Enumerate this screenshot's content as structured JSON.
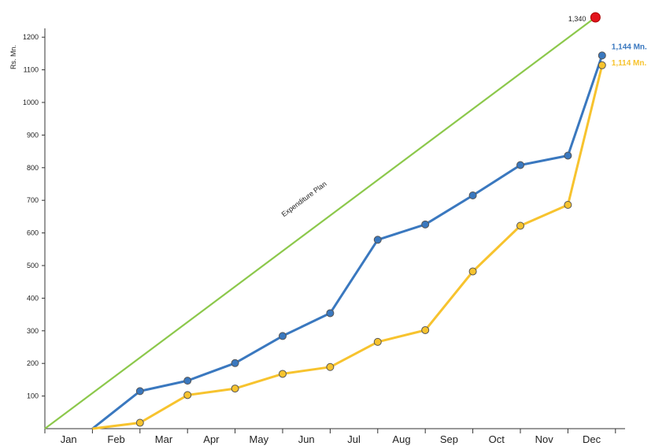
{
  "chart_data": {
    "type": "line",
    "ylabel": "Rs. Mn.",
    "categories": [
      "Jan",
      "Feb",
      "Mar",
      "Apr",
      "May",
      "Jun",
      "Jul",
      "Aug",
      "Sep",
      "Oct",
      "Nov",
      "Dec"
    ],
    "yticks": [
      100,
      200,
      300,
      400,
      500,
      600,
      700,
      800,
      900,
      1000,
      1100,
      1200
    ],
    "ylim": [
      0,
      1250
    ],
    "grid": false,
    "series": [
      {
        "color": "#3a78bf",
        "values": [
          0,
          115,
          147,
          201,
          284,
          354,
          579,
          626,
          715,
          808,
          837,
          1144
        ],
        "end_label": "1,144 Mn."
      },
      {
        "color": "#f7c32e",
        "values": [
          0,
          18,
          103,
          123,
          168,
          189,
          266,
          302,
          482,
          622,
          686,
          1114
        ],
        "end_label": "1,114 Mn."
      }
    ],
    "plan": {
      "label": "Expenditure Plan",
      "end_value_label": "1,340",
      "color": "#8cc84b",
      "marker_color": "#e3141c"
    }
  }
}
